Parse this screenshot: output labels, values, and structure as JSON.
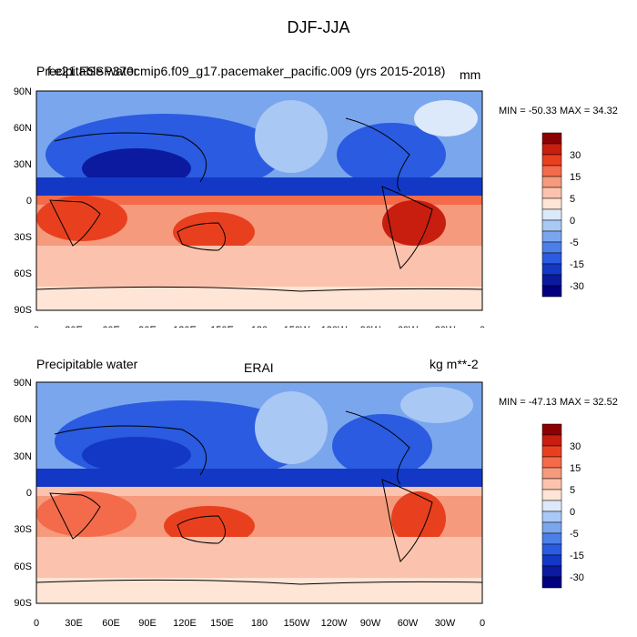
{
  "title": "DJF-JJA",
  "panels": [
    {
      "left_label": "Precipitable water",
      "center_label": "f.e21.FSSP370cmip6.f09_g17.pacemaker_pacific.009 (yrs 2015-2018)",
      "right_label": "mm",
      "min_max": "MIN = -50.33 MAX =  34.32"
    },
    {
      "left_label": "Precipitable water",
      "center_label": "ERAI",
      "right_label": "kg m**-2",
      "min_max": "MIN = -47.13 MAX =  32.52"
    }
  ],
  "lat_labels": [
    "90N",
    "60N",
    "30N",
    "0",
    "30S",
    "60S",
    "90S"
  ],
  "lon_labels": [
    "0",
    "30E",
    "60E",
    "90E",
    "120E",
    "150E",
    "180",
    "150W",
    "120W",
    "90W",
    "60W",
    "30W",
    "0"
  ],
  "colorbar": {
    "labels": [
      "30",
      "15",
      "5",
      "0",
      "-5",
      "-15",
      "-30"
    ],
    "colors": [
      "#8b0000",
      "#c81e0f",
      "#e8401f",
      "#f36b4a",
      "#f59a7c",
      "#fbc3ad",
      "#fee5d6",
      "#dbe9fa",
      "#a9c8f4",
      "#7aa6ee",
      "#4d7fe8",
      "#2a5be0",
      "#1438c6",
      "#0b1a9e",
      "#000080"
    ]
  },
  "colors": {
    "strong_blue": "#1438c6",
    "mid_blue": "#4d7fe8",
    "light_blue": "#a9c8f4",
    "pale": "#fee5d6",
    "light_red": "#f59a7c",
    "red": "#e8401f",
    "dark_red": "#c81e0f"
  }
}
